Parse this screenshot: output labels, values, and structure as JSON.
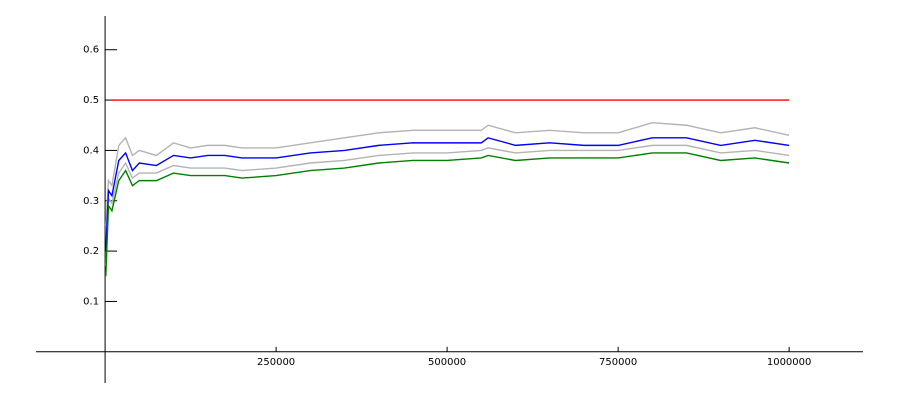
{
  "chart_data": {
    "type": "line",
    "x": [
      1000,
      5000,
      10000,
      20000,
      30000,
      40000,
      50000,
      75000,
      100000,
      125000,
      150000,
      175000,
      200000,
      250000,
      300000,
      350000,
      400000,
      450000,
      500000,
      550000,
      560000,
      600000,
      650000,
      700000,
      750000,
      800000,
      850000,
      900000,
      950000,
      1000000
    ],
    "series": [
      {
        "color": "#ff0000",
        "values": [
          null,
          null,
          0.5,
          0.5,
          0.5,
          0.5,
          0.5,
          0.5,
          0.5,
          0.5,
          0.5,
          0.5,
          0.5,
          0.5,
          0.5,
          0.5,
          0.5,
          0.5,
          0.5,
          0.5,
          0.5,
          0.5,
          0.5,
          0.5,
          0.5,
          0.5,
          0.5,
          0.5,
          0.5,
          0.5
        ]
      },
      {
        "color": "#b3b3b3",
        "values": [
          0.25,
          0.34,
          0.33,
          0.41,
          0.425,
          0.39,
          0.4,
          0.39,
          0.415,
          0.405,
          0.41,
          0.41,
          0.405,
          0.405,
          0.415,
          0.425,
          0.435,
          0.44,
          0.44,
          0.44,
          0.45,
          0.435,
          0.44,
          0.435,
          0.435,
          0.455,
          0.45,
          0.435,
          0.445,
          0.43
        ]
      },
      {
        "color": "#b3b3b3",
        "values": [
          0.17,
          0.305,
          0.295,
          0.355,
          0.375,
          0.345,
          0.355,
          0.355,
          0.37,
          0.365,
          0.365,
          0.365,
          0.36,
          0.365,
          0.375,
          0.38,
          0.39,
          0.395,
          0.395,
          0.4,
          0.405,
          0.395,
          0.4,
          0.4,
          0.4,
          0.41,
          0.41,
          0.395,
          0.4,
          0.39
        ]
      },
      {
        "color": "#0000ff",
        "values": [
          0.2,
          0.32,
          0.31,
          0.38,
          0.395,
          0.36,
          0.375,
          0.37,
          0.39,
          0.385,
          0.39,
          0.39,
          0.385,
          0.385,
          0.395,
          0.4,
          0.41,
          0.415,
          0.415,
          0.415,
          0.425,
          0.41,
          0.415,
          0.41,
          0.41,
          0.425,
          0.425,
          0.41,
          0.42,
          0.41
        ]
      },
      {
        "color": "#008000",
        "values": [
          0.15,
          0.29,
          0.28,
          0.34,
          0.36,
          0.33,
          0.34,
          0.34,
          0.355,
          0.35,
          0.35,
          0.35,
          0.345,
          0.35,
          0.36,
          0.365,
          0.375,
          0.38,
          0.38,
          0.385,
          0.39,
          0.38,
          0.385,
          0.385,
          0.385,
          0.395,
          0.395,
          0.38,
          0.385,
          0.375
        ]
      }
    ],
    "xlim": [
      -101000,
      1108000
    ],
    "ylim": [
      -0.062,
      0.667
    ],
    "xticks": [
      250000,
      500000,
      750000,
      1000000
    ],
    "yticks": [
      0.1,
      0.2,
      0.3,
      0.4,
      0.5,
      0.6
    ]
  }
}
